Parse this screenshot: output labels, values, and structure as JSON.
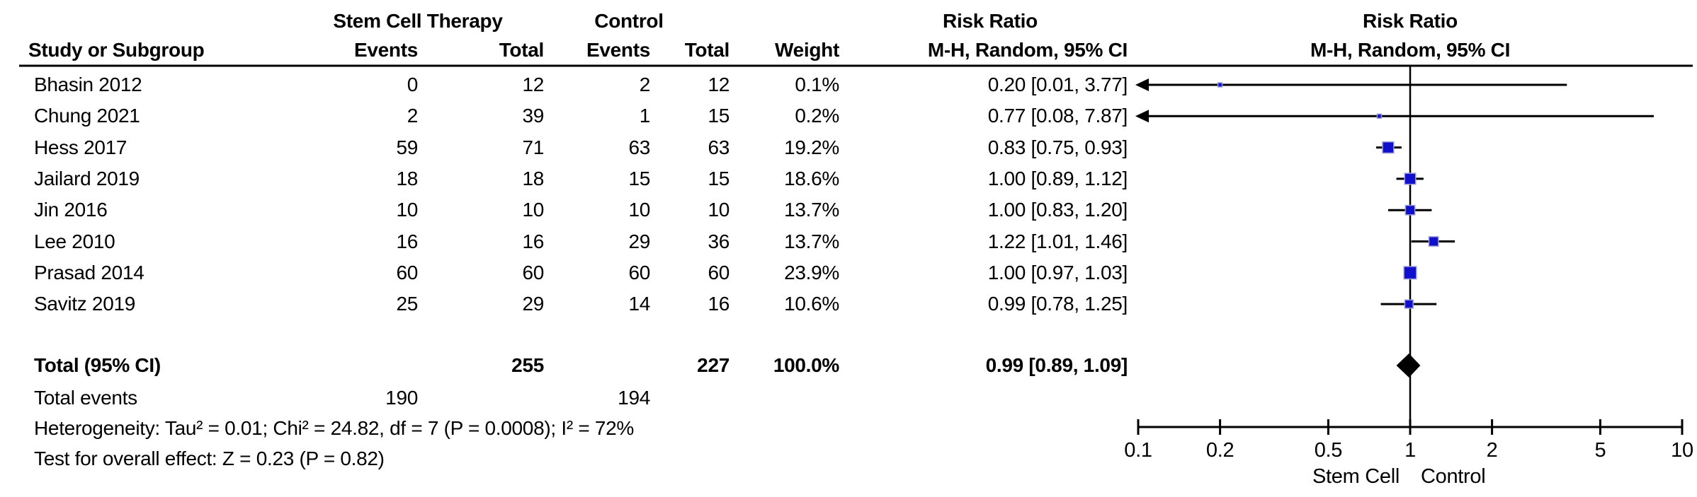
{
  "header": {
    "treatment_group": "Stem Cell Therapy",
    "control_group": "Control",
    "effect_measure": "Risk Ratio",
    "method": "M-H, Random, 95% CI",
    "study_col": "Study or Subgroup",
    "events_col": "Events",
    "total_col": "Total",
    "weight_col": "Weight"
  },
  "colors": {
    "marker_fill": "#0f0fcd",
    "marker_stroke": "#9b9bd4",
    "diamond": "#000000",
    "line": "#000000",
    "text": "#000000",
    "background": "#ffffff"
  },
  "chart_data": {
    "type": "forest",
    "effect_measure": "Risk Ratio",
    "method": "M-H, Random, 95% CI",
    "x_scale": "log10",
    "x_ticks": [
      0.1,
      0.2,
      0.5,
      1,
      2,
      5,
      10
    ],
    "x_range": [
      0.1,
      10
    ],
    "favors_left": "Stem Cell",
    "favors_right": "Control",
    "studies": [
      {
        "study": "Bhasin 2012",
        "t_events": "0",
        "t_total": "12",
        "c_events": "2",
        "c_total": "12",
        "weight": "0.1%",
        "weight_pct": 0.1,
        "rr": 0.2,
        "low": 0.01,
        "high": 3.77,
        "ci_text": "0.20 [0.01, 3.77]"
      },
      {
        "study": "Chung 2021",
        "t_events": "2",
        "t_total": "39",
        "c_events": "1",
        "c_total": "15",
        "weight": "0.2%",
        "weight_pct": 0.2,
        "rr": 0.77,
        "low": 0.08,
        "high": 7.87,
        "ci_text": "0.77 [0.08, 7.87]"
      },
      {
        "study": "Hess 2017",
        "t_events": "59",
        "t_total": "71",
        "c_events": "63",
        "c_total": "63",
        "weight": "19.2%",
        "weight_pct": 19.2,
        "rr": 0.83,
        "low": 0.75,
        "high": 0.93,
        "ci_text": "0.83 [0.75, 0.93]"
      },
      {
        "study": "Jailard 2019",
        "t_events": "18",
        "t_total": "18",
        "c_events": "15",
        "c_total": "15",
        "weight": "18.6%",
        "weight_pct": 18.6,
        "rr": 1.0,
        "low": 0.89,
        "high": 1.12,
        "ci_text": "1.00 [0.89, 1.12]"
      },
      {
        "study": "Jin 2016",
        "t_events": "10",
        "t_total": "10",
        "c_events": "10",
        "c_total": "10",
        "weight": "13.7%",
        "weight_pct": 13.7,
        "rr": 1.0,
        "low": 0.83,
        "high": 1.2,
        "ci_text": "1.00 [0.83, 1.20]"
      },
      {
        "study": "Lee 2010",
        "t_events": "16",
        "t_total": "16",
        "c_events": "29",
        "c_total": "36",
        "weight": "13.7%",
        "weight_pct": 13.7,
        "rr": 1.22,
        "low": 1.01,
        "high": 1.46,
        "ci_text": "1.22 [1.01, 1.46]"
      },
      {
        "study": "Prasad 2014",
        "t_events": "60",
        "t_total": "60",
        "c_events": "60",
        "c_total": "60",
        "weight": "23.9%",
        "weight_pct": 23.9,
        "rr": 1.0,
        "low": 0.97,
        "high": 1.03,
        "ci_text": "1.00 [0.97, 1.03]"
      },
      {
        "study": "Savitz 2019",
        "t_events": "25",
        "t_total": "29",
        "c_events": "14",
        "c_total": "16",
        "weight": "10.6%",
        "weight_pct": 10.6,
        "rr": 0.99,
        "low": 0.78,
        "high": 1.25,
        "ci_text": "0.99 [0.78, 1.25]"
      }
    ],
    "total": {
      "label": "Total (95% CI)",
      "t_total": "255",
      "c_total": "227",
      "weight": "100.0%",
      "rr": 0.99,
      "low": 0.89,
      "high": 1.09,
      "ci_text": "0.99 [0.89, 1.09]"
    },
    "total_events": {
      "label": "Total events",
      "treatment": "190",
      "control": "194"
    },
    "footnotes": {
      "heterogeneity": "Heterogeneity: Tau² = 0.01; Chi² = 24.82, df = 7 (P = 0.0008); I² = 72%",
      "overall_effect": "Test for overall effect: Z = 0.23 (P = 0.82)"
    }
  }
}
